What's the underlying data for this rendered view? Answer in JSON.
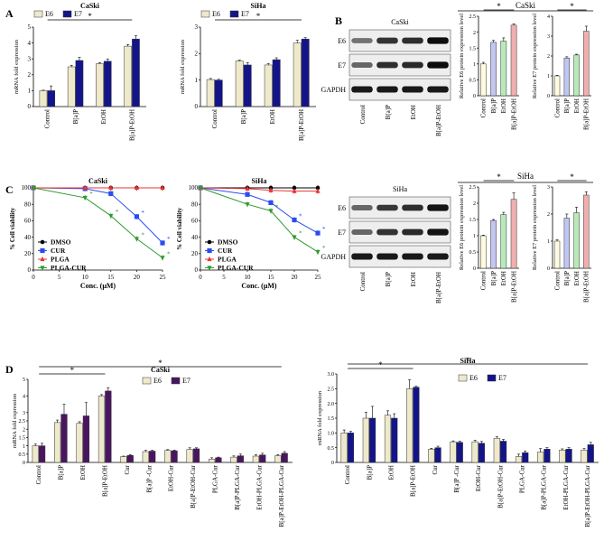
{
  "panel_letters": {
    "A": "A",
    "B": "B",
    "C": "C",
    "D": "D"
  },
  "chart_data": [
    {
      "id": "A1",
      "type": "bar",
      "title": "CaSki",
      "ylabel": "mRNA fold expression",
      "ylim": [
        0,
        5
      ],
      "yticks": [
        0,
        1,
        2,
        3,
        4,
        5
      ],
      "categories": [
        "Control",
        "B[a]P",
        "EtOH",
        "B[a]P-EtOH"
      ],
      "series": [
        {
          "name": "E6",
          "color": "#efe9cc",
          "values": [
            1.0,
            2.5,
            2.7,
            3.8
          ],
          "errors": [
            0.03,
            0.1,
            0.06,
            0.1
          ]
        },
        {
          "name": "E7",
          "color": "#14148a",
          "values": [
            1.0,
            2.9,
            2.85,
            4.25
          ],
          "errors": [
            0.3,
            0.2,
            0.15,
            0.2
          ]
        }
      ],
      "annotation": "*"
    },
    {
      "id": "A2",
      "type": "bar",
      "title": "SiHa",
      "ylabel": "mRNA fold expression",
      "ylim": [
        0,
        3
      ],
      "yticks": [
        0,
        1,
        2,
        3
      ],
      "categories": [
        "Control",
        "B[a]P",
        "EtOH",
        "B[a]P-EtOH"
      ],
      "series": [
        {
          "name": "E6",
          "color": "#efe9cc",
          "values": [
            1.02,
            1.72,
            1.57,
            2.4
          ],
          "errors": [
            0.04,
            0.03,
            0.05,
            0.1
          ]
        },
        {
          "name": "E7",
          "color": "#14148a",
          "values": [
            1.0,
            1.57,
            1.77,
            2.55
          ],
          "errors": [
            0.03,
            0.09,
            0.07,
            0.05
          ]
        }
      ],
      "annotation": "*"
    },
    {
      "id": "B1",
      "type": "bar",
      "title": "",
      "ylabel": "Relative E6 protein expression level",
      "ylim": [
        0,
        2.5
      ],
      "categories": [
        "Control",
        "B[a]P",
        "EtOH",
        "B[a]P-EtOH"
      ],
      "series": [
        {
          "name": "E6",
          "colors": [
            "#fffbe0",
            "#c2c6f0",
            "#b7eab8",
            "#f0aeae"
          ],
          "values": [
            1.0,
            1.68,
            1.72,
            2.22
          ],
          "errors": [
            0.05,
            0.06,
            0.1,
            0.04
          ]
        }
      ],
      "annotation": "*"
    },
    {
      "id": "B2",
      "type": "bar",
      "title": "",
      "ylabel": "Relative E7 protein expression level",
      "ylim": [
        0,
        4
      ],
      "categories": [
        "Control",
        "B[a]P",
        "EtOH",
        "B[a]P-EtOH"
      ],
      "series": [
        {
          "name": "E7",
          "colors": [
            "#fffbe0",
            "#c2c6f0",
            "#b7eab8",
            "#f0aeae"
          ],
          "values": [
            1.0,
            1.9,
            2.05,
            3.25
          ],
          "errors": [
            0.03,
            0.06,
            0.04,
            0.25
          ]
        }
      ],
      "annotation": "*"
    },
    {
      "id": "B3",
      "type": "bar",
      "title": "",
      "ylabel": "Relative E6 protein expression level",
      "ylim": [
        0,
        2.5
      ],
      "categories": [
        "Control",
        "B[a]P",
        "EtOH",
        "B[a]P-EtOH"
      ],
      "series": [
        {
          "name": "E6",
          "colors": [
            "#fffbe0",
            "#c2c6f0",
            "#b7eab8",
            "#f0aeae"
          ],
          "values": [
            1.0,
            1.47,
            1.65,
            2.12
          ],
          "errors": [
            0.02,
            0.03,
            0.07,
            0.2
          ]
        }
      ],
      "annotation": "*"
    },
    {
      "id": "B4",
      "type": "bar",
      "title": "",
      "ylabel": "Relative E7 protein expression level",
      "ylim": [
        0,
        3
      ],
      "yticks": [
        0,
        1,
        2,
        3
      ],
      "categories": [
        "Control",
        "B[a]P",
        "EtOH",
        "B[a]P-EtOH"
      ],
      "series": [
        {
          "name": "E7",
          "colors": [
            "#fffbe0",
            "#c2c6f0",
            "#b7eab8",
            "#f0aeae"
          ],
          "values": [
            1.0,
            1.85,
            2.05,
            2.7
          ],
          "errors": [
            0.05,
            0.15,
            0.2,
            0.12
          ]
        }
      ],
      "annotation": "*"
    },
    {
      "id": "C1",
      "type": "line",
      "title": "CaSki",
      "xlabel": "Conc. (μM)",
      "ylabel": "% Cell viability",
      "xlim": [
        0,
        25
      ],
      "ylim": [
        0,
        100
      ],
      "xticks": [
        0,
        5,
        10,
        15,
        20,
        25
      ],
      "yticks": [
        0,
        20,
        40,
        60,
        80,
        100
      ],
      "x": [
        0,
        10,
        15,
        20,
        25
      ],
      "series": [
        {
          "name": "DMSO",
          "color": "#000000",
          "marker": "circle",
          "values": [
            100,
            100,
            100,
            100,
            100
          ]
        },
        {
          "name": "CUR",
          "color": "#2b4cf0",
          "marker": "square",
          "values": [
            100,
            99,
            93,
            65,
            33
          ]
        },
        {
          "name": "PLGA",
          "color": "#e83535",
          "marker": "triangle-up",
          "values": [
            100,
            100,
            100,
            100,
            100
          ]
        },
        {
          "name": "PLGA-CUR",
          "color": "#2f9a2f",
          "marker": "triangle-down",
          "values": [
            100,
            88,
            66,
            38,
            15
          ]
        }
      ],
      "annotations": [
        "*",
        "*",
        "*",
        "*",
        "*",
        "*"
      ]
    },
    {
      "id": "C2",
      "type": "line",
      "title": "SiHa",
      "xlabel": "Conc. (μM)",
      "ylabel": "% Cell viability",
      "xlim": [
        0,
        25
      ],
      "ylim": [
        0,
        100
      ],
      "xticks": [
        0,
        5,
        10,
        15,
        20,
        25
      ],
      "yticks": [
        0,
        20,
        40,
        60,
        80,
        100
      ],
      "x": [
        0,
        10,
        15,
        20,
        25
      ],
      "series": [
        {
          "name": "DMSO",
          "color": "#000000",
          "marker": "circle",
          "values": [
            100,
            100,
            100,
            100,
            100
          ]
        },
        {
          "name": "CUR",
          "color": "#2b4cf0",
          "marker": "square",
          "values": [
            100,
            92,
            82,
            61,
            45
          ]
        },
        {
          "name": "PLGA",
          "color": "#e83535",
          "marker": "triangle-up",
          "values": [
            100,
            99,
            97,
            96,
            96
          ]
        },
        {
          "name": "PLGA-CUR",
          "color": "#2f9a2f",
          "marker": "triangle-down",
          "values": [
            100,
            80,
            72,
            40,
            22
          ]
        }
      ],
      "annotations": [
        "*",
        "*",
        "*",
        "*",
        "*"
      ]
    },
    {
      "id": "D1",
      "type": "bar",
      "title": "CaSki",
      "ylabel": "mRNA fold expression",
      "ylim": [
        0,
        5
      ],
      "yticks": [
        0,
        0.5,
        1,
        1.5,
        2,
        2.5,
        3,
        4,
        5
      ],
      "ytick_labels": [
        "0",
        "0.5",
        "1",
        "1.5",
        "2",
        "2.5",
        "3",
        "4",
        "5"
      ],
      "categories": [
        "Control",
        "B[a]P",
        "EtOH",
        "B[a]P-EtOH",
        "Cur",
        "B[a]P -Cur",
        "EtOH-Cur",
        "B[a]P-EtOH-Cur",
        "PLGA-Cur",
        "B[a]P-PLGA-Cur",
        "EtOH-PLGA-Cur",
        "B[a]P-EtOH-PLGA-Cur"
      ],
      "series": [
        {
          "name": "E6",
          "color": "#efe9cc",
          "values": [
            1.0,
            2.4,
            2.35,
            4.0,
            0.35,
            0.65,
            0.72,
            0.78,
            0.2,
            0.32,
            0.38,
            0.4
          ],
          "errors": [
            0.1,
            0.15,
            0.1,
            0.08,
            0.03,
            0.08,
            0.05,
            0.1,
            0.08,
            0.07,
            0.08,
            0.06
          ]
        },
        {
          "name": "E7",
          "color": "#4a1560",
          "values": [
            1.0,
            2.9,
            2.8,
            4.3,
            0.42,
            0.68,
            0.7,
            0.82,
            0.28,
            0.4,
            0.45,
            0.55
          ],
          "errors": [
            0.15,
            0.6,
            0.8,
            0.2,
            0.05,
            0.05,
            0.04,
            0.06,
            0.04,
            0.1,
            0.1,
            0.1
          ]
        }
      ],
      "annotation": "*"
    },
    {
      "id": "D2",
      "type": "bar",
      "title": "SiHa",
      "ylabel": "mRNA fold expression",
      "ylim": [
        0,
        3
      ],
      "yticks": [
        0,
        0.5,
        1,
        1.5,
        2,
        2.5,
        3
      ],
      "ytick_labels": [
        "0",
        "0.5",
        "1.0",
        "1.5",
        "2.0",
        "2.5",
        "3.0"
      ],
      "categories": [
        "Control",
        "B[a]P",
        "EtOH",
        "B[a]P-EtOH",
        "Cur",
        "B[a]P -Cur",
        "EtOH-Cur",
        "B[a]P-EtOH-Cur",
        "PLGA-Cur",
        "B[a]P-PLGA-Cur",
        "EtOH-PLGA-Cur",
        "B[a]P-EtOH-PLGA-Cur"
      ],
      "series": [
        {
          "name": "E6",
          "color": "#efe9cc",
          "values": [
            1.0,
            1.5,
            1.6,
            2.5,
            0.45,
            0.7,
            0.7,
            0.82,
            0.2,
            0.35,
            0.42,
            0.42
          ],
          "errors": [
            0.1,
            0.2,
            0.15,
            0.3,
            0.03,
            0.03,
            0.05,
            0.05,
            0.08,
            0.12,
            0.04,
            0.05
          ]
        },
        {
          "name": "E7",
          "color": "#14148a",
          "values": [
            1.0,
            1.5,
            1.5,
            2.55,
            0.5,
            0.68,
            0.65,
            0.72,
            0.33,
            0.45,
            0.45,
            0.6
          ],
          "errors": [
            0.05,
            0.4,
            0.15,
            0.03,
            0.05,
            0.04,
            0.06,
            0.06,
            0.06,
            0.05,
            0.05,
            0.08
          ]
        }
      ],
      "annotation": "*"
    }
  ],
  "blots": [
    {
      "id": "blot1",
      "title": "CaSki",
      "rows": [
        "E6",
        "E7",
        "GAPDH"
      ],
      "lanes": [
        "Control",
        "B[a]P",
        "EtOH",
        "B[a]P-EtOH"
      ],
      "intensity": [
        [
          0.55,
          0.8,
          0.82,
          0.95
        ],
        [
          0.6,
          0.82,
          0.84,
          0.95
        ],
        [
          0.9,
          0.9,
          0.9,
          0.9
        ]
      ]
    },
    {
      "id": "blot2",
      "title": "SiHa",
      "rows": [
        "E6",
        "E7",
        "GAPDH"
      ],
      "lanes": [
        "Control",
        "B[a]P",
        "EtOH",
        "B[a]P-EtOH"
      ],
      "intensity": [
        [
          0.6,
          0.78,
          0.82,
          0.92
        ],
        [
          0.6,
          0.8,
          0.83,
          0.92
        ],
        [
          0.9,
          0.9,
          0.9,
          0.9
        ]
      ]
    }
  ],
  "B_headers": {
    "top": "CaSki",
    "bottom": "SiHa"
  }
}
